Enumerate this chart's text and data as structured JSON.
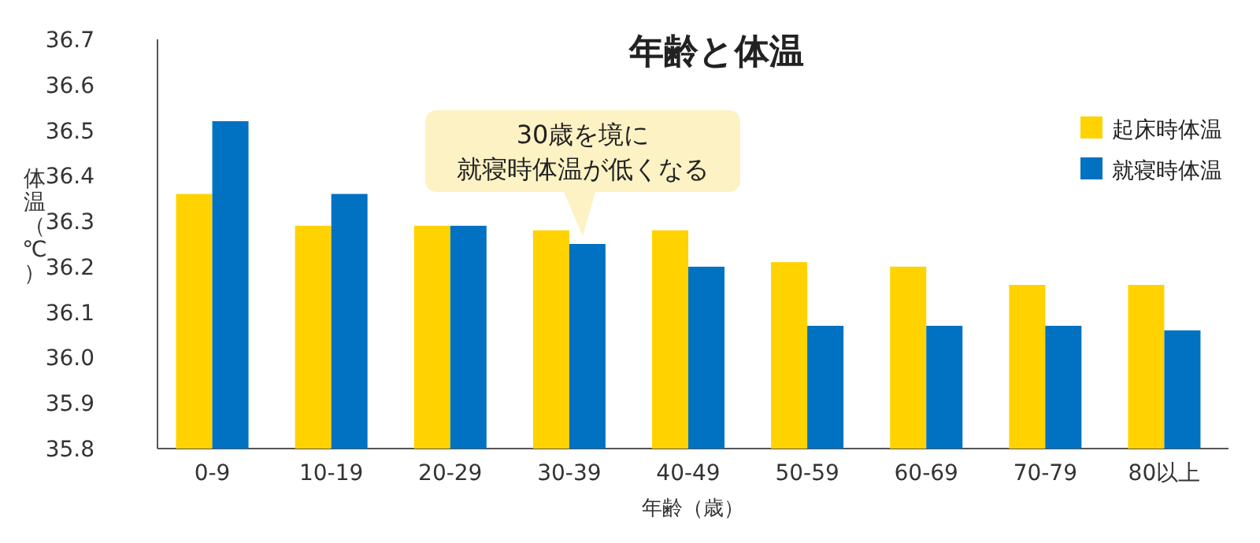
{
  "chart_data": {
    "type": "bar",
    "title": "年齢と体温",
    "xlabel": "年齢（歳）",
    "ylabel": "体温（℃）",
    "categories": [
      "0-9",
      "10-19",
      "20-29",
      "30-39",
      "40-49",
      "50-59",
      "60-69",
      "70-79",
      "80以上"
    ],
    "series": [
      {
        "name": "起床時体温",
        "color": "#ffd200",
        "values": [
          36.36,
          36.29,
          36.29,
          36.28,
          36.28,
          36.21,
          36.2,
          36.16,
          36.16
        ]
      },
      {
        "name": "就寝時体温",
        "color": "#0072c1",
        "values": [
          36.52,
          36.36,
          36.29,
          36.25,
          36.2,
          36.07,
          36.07,
          36.07,
          36.06
        ]
      }
    ],
    "ylim": [
      35.8,
      36.7
    ],
    "yticks": [
      35.8,
      35.9,
      {
        "value": 36,
        "label": "36.0"
      },
      36.1,
      36.2,
      36.3,
      36.4,
      36.5,
      36.6,
      36.7
    ],
    "annotations": [
      "30歳を境に",
      "就寝時体温が低くなる"
    ],
    "legend": "top right",
    "grid": false
  }
}
